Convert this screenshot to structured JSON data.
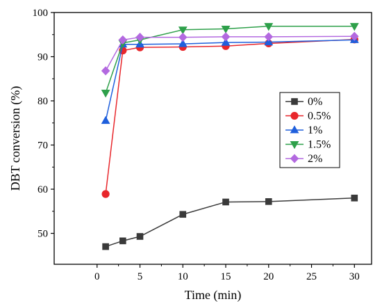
{
  "chart_data": {
    "type": "line",
    "xlabel": "Time (min)",
    "ylabel": "DBT conversion (%)",
    "xlim": [
      -5,
      32
    ],
    "ylim": [
      43,
      100
    ],
    "xticks": [
      "0",
      "5",
      "10",
      "15",
      "20",
      "25",
      "30"
    ],
    "yticks": [
      "50",
      "60",
      "70",
      "80",
      "90",
      "100"
    ],
    "grid": false,
    "legend_position": "middle-right",
    "x": [
      1,
      3,
      5,
      10,
      15,
      20,
      30
    ],
    "series": [
      {
        "name": "0%",
        "marker": "square",
        "color": "#3a3a3a",
        "values": [
          47.0,
          48.3,
          49.3,
          54.3,
          57.1,
          57.2,
          58.0
        ]
      },
      {
        "name": "0.5%",
        "marker": "circle",
        "color": "#e8262b",
        "values": [
          58.9,
          91.4,
          92.1,
          92.2,
          92.4,
          93.0,
          93.9
        ]
      },
      {
        "name": "1%",
        "marker": "triangle-up",
        "color": "#1f5fdc",
        "values": [
          75.5,
          92.8,
          92.8,
          92.9,
          93.2,
          93.3,
          93.8
        ]
      },
      {
        "name": "1.5%",
        "marker": "triangle-down",
        "color": "#2ea04a",
        "values": [
          81.8,
          93.1,
          93.8,
          96.1,
          96.3,
          96.9,
          96.9
        ]
      },
      {
        "name": "2%",
        "marker": "diamond",
        "color": "#b369e0",
        "values": [
          86.8,
          93.8,
          94.4,
          94.4,
          94.5,
          94.5,
          94.6
        ]
      }
    ]
  }
}
